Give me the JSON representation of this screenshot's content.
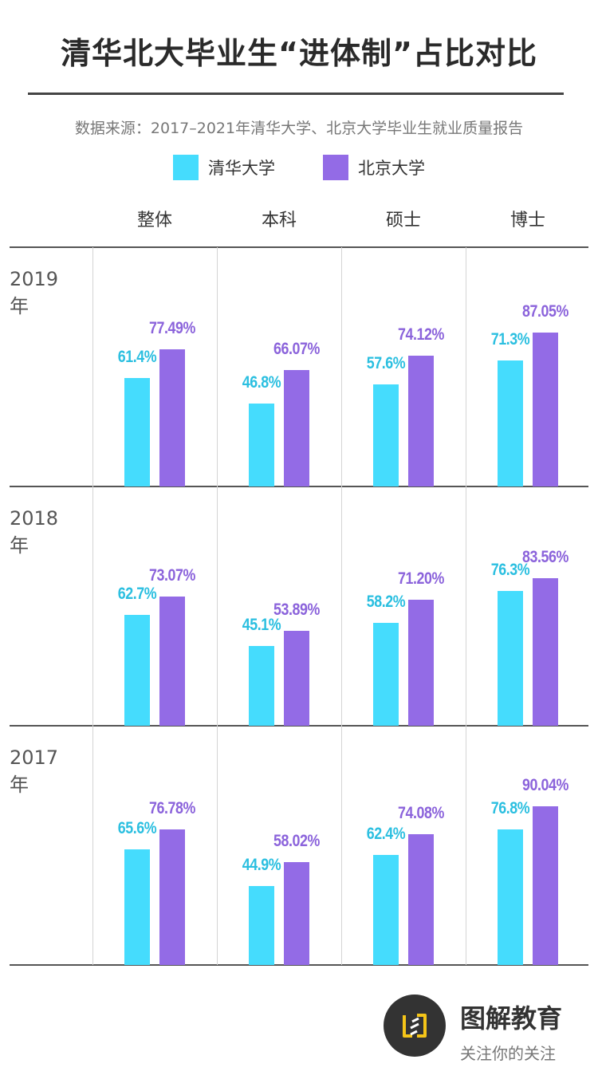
{
  "header": {
    "title": "清华北大毕业生“进体制”占比对比",
    "source": "数据来源：2017–2021年清华大学、北京大学毕业生就业质量报告"
  },
  "colors": {
    "tsinghua": "#45dcfd",
    "pku": "#936be6",
    "tsinghua_label": "#2bbfe0",
    "pku_label": "#8b63db"
  },
  "chart_data": {
    "type": "bar",
    "title": "清华北大毕业生“进体制”占比对比",
    "categories": [
      "整体",
      "本科",
      "硕士",
      "博士"
    ],
    "panels": [
      {
        "label": "2019年",
        "series": [
          {
            "name": "清华大学",
            "values": [
              61.4,
              46.8,
              57.6,
              71.3
            ],
            "labels": [
              "61.4%",
              "46.8%",
              "57.6%",
              "71.3%"
            ]
          },
          {
            "name": "北京大学",
            "values": [
              77.49,
              66.07,
              74.12,
              87.05
            ],
            "labels": [
              "77.49%",
              "66.07%",
              "74.12%",
              "87.05%"
            ]
          }
        ]
      },
      {
        "label": "2018年",
        "series": [
          {
            "name": "清华大学",
            "values": [
              62.7,
              45.1,
              58.2,
              76.3
            ],
            "labels": [
              "62.7%",
              "45.1%",
              "58.2%",
              "76.3%"
            ]
          },
          {
            "name": "北京大学",
            "values": [
              73.07,
              53.89,
              71.2,
              83.56
            ],
            "labels": [
              "73.07%",
              "53.89%",
              "71.20%",
              "83.56%"
            ]
          }
        ]
      },
      {
        "label": "2017年",
        "series": [
          {
            "name": "清华大学",
            "values": [
              65.6,
              44.9,
              62.4,
              76.8
            ],
            "labels": [
              "65.6%",
              "44.9%",
              "62.4%",
              "76.8%"
            ]
          },
          {
            "name": "北京大学",
            "values": [
              76.78,
              58.02,
              74.08,
              90.04
            ],
            "labels": [
              "76.78%",
              "58.02%",
              "74.08%",
              "90.04%"
            ]
          }
        ]
      }
    ],
    "legend": [
      "清华大学",
      "北京大学"
    ],
    "legend_position": "top",
    "ylim": [
      0,
      100
    ],
    "grid": false
  },
  "brand": {
    "name": "图解教育",
    "slogan": "关注你的关注"
  }
}
